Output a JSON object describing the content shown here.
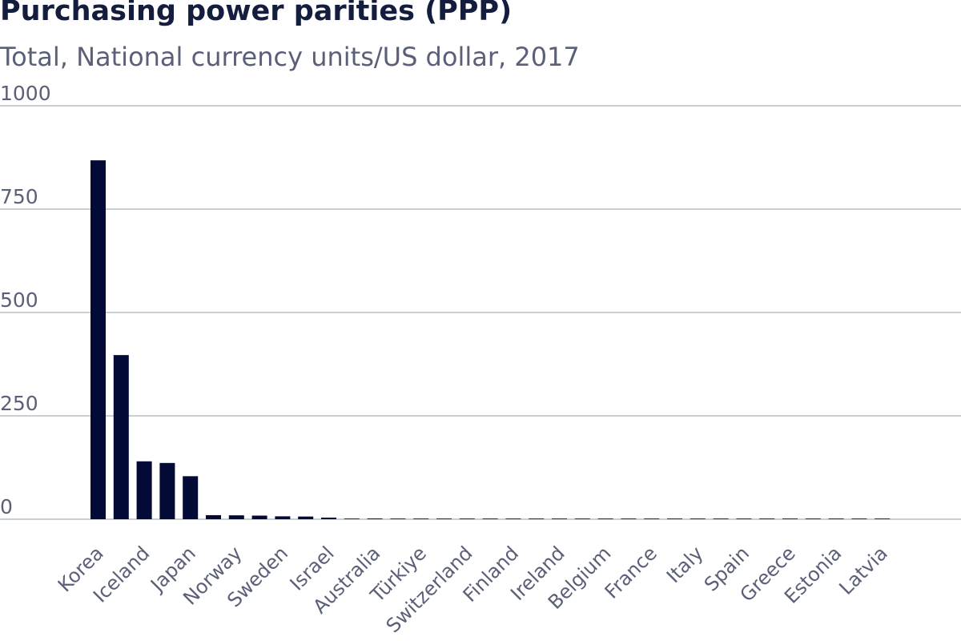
{
  "header": {
    "title": "Purchasing power parities (PPP)",
    "subtitle": "Total, National currency units/US dollar, 2017"
  },
  "colors": {
    "bar": "#020a35",
    "grid": "#b6bec8",
    "text": "#5b6079",
    "title": "#141d3d"
  },
  "chart_data": {
    "type": "bar",
    "title": "Purchasing power parities (PPP)",
    "subtitle": "Total, National currency units/US dollar, 2017",
    "categories": [
      "Korea",
      "",
      "Iceland",
      "",
      "Japan",
      "",
      "Norway",
      "",
      "Sweden",
      "",
      "Israel",
      "",
      "Australia",
      "",
      "Türkiye",
      "",
      "Switzerland",
      "",
      "Finland",
      "",
      "Ireland",
      "",
      "Belgium",
      "",
      "France",
      "",
      "Italy",
      "",
      "Spain",
      "",
      "Greece",
      "",
      "Estonia",
      "",
      "Latvia"
    ],
    "values": [
      868.0,
      397.0,
      140.0,
      136.0,
      104.0,
      9.8,
      9.4,
      8.7,
      7.0,
      6.5,
      3.8,
      1.45,
      1.7,
      1.45,
      1.1,
      0.85,
      0.82,
      0.8,
      0.76,
      0.73,
      0.68,
      0.62,
      0.57,
      0.55,
      0.52,
      0.5,
      0.48,
      0.47,
      0.45,
      0.43,
      0.42,
      0.41,
      0.4,
      0.39,
      0.38
    ],
    "y_ticks": [
      0,
      250,
      500,
      750,
      1000
    ],
    "ylim": [
      0,
      1000
    ],
    "grid": true,
    "legend": "none",
    "xlabel": "",
    "ylabel": ""
  }
}
